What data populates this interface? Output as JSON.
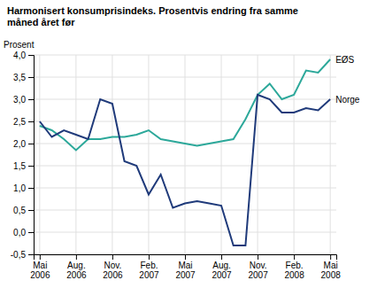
{
  "chart_data": {
    "type": "line",
    "title": "Harmonisert konsumprisindeks. Prosentvis endring fra samme\nmåned året før",
    "ylabel": "Prosent",
    "categories": [
      "Mai\n2006",
      null,
      null,
      "Aug.\n2006",
      null,
      null,
      "Nov.\n2006",
      null,
      null,
      "Feb.\n2007",
      null,
      null,
      "Mai\n2007",
      null,
      null,
      "Aug.\n2007",
      null,
      null,
      "Nov.\n2007",
      null,
      null,
      "Feb.\n2008",
      null,
      null,
      "Mai\n2008"
    ],
    "series": [
      {
        "name": "EØS",
        "color": "#2ca89a",
        "values": [
          2.4,
          2.3,
          2.1,
          1.85,
          2.1,
          2.1,
          2.15,
          2.15,
          2.2,
          2.3,
          2.1,
          2.05,
          2.0,
          1.95,
          2.0,
          2.05,
          2.1,
          2.55,
          3.1,
          3.35,
          3.0,
          3.1,
          3.65,
          3.6,
          3.9
        ]
      },
      {
        "name": "Norge",
        "color": "#1f3a7a",
        "values": [
          2.5,
          2.15,
          2.3,
          2.2,
          2.1,
          3.0,
          2.9,
          1.6,
          1.5,
          0.85,
          1.3,
          0.55,
          0.65,
          0.7,
          0.65,
          0.6,
          -0.3,
          -0.3,
          3.1,
          3.0,
          2.7,
          2.7,
          2.8,
          2.75,
          3.0
        ]
      }
    ],
    "ylim": [
      -0.5,
      4.0
    ],
    "yticks": [
      {
        "value": -0.5,
        "label": "-0,5"
      },
      {
        "value": 0.0,
        "label": "0,0"
      },
      {
        "value": 0.5,
        "label": "0,5"
      },
      {
        "value": 1.0,
        "label": "1,0"
      },
      {
        "value": 1.5,
        "label": "1,5"
      },
      {
        "value": 2.0,
        "label": "2,0"
      },
      {
        "value": 2.5,
        "label": "2,5"
      },
      {
        "value": 3.0,
        "label": "3,0"
      },
      {
        "value": 3.5,
        "label": "3,5"
      },
      {
        "value": 4.0,
        "label": "4,0"
      }
    ],
    "grid": true
  }
}
